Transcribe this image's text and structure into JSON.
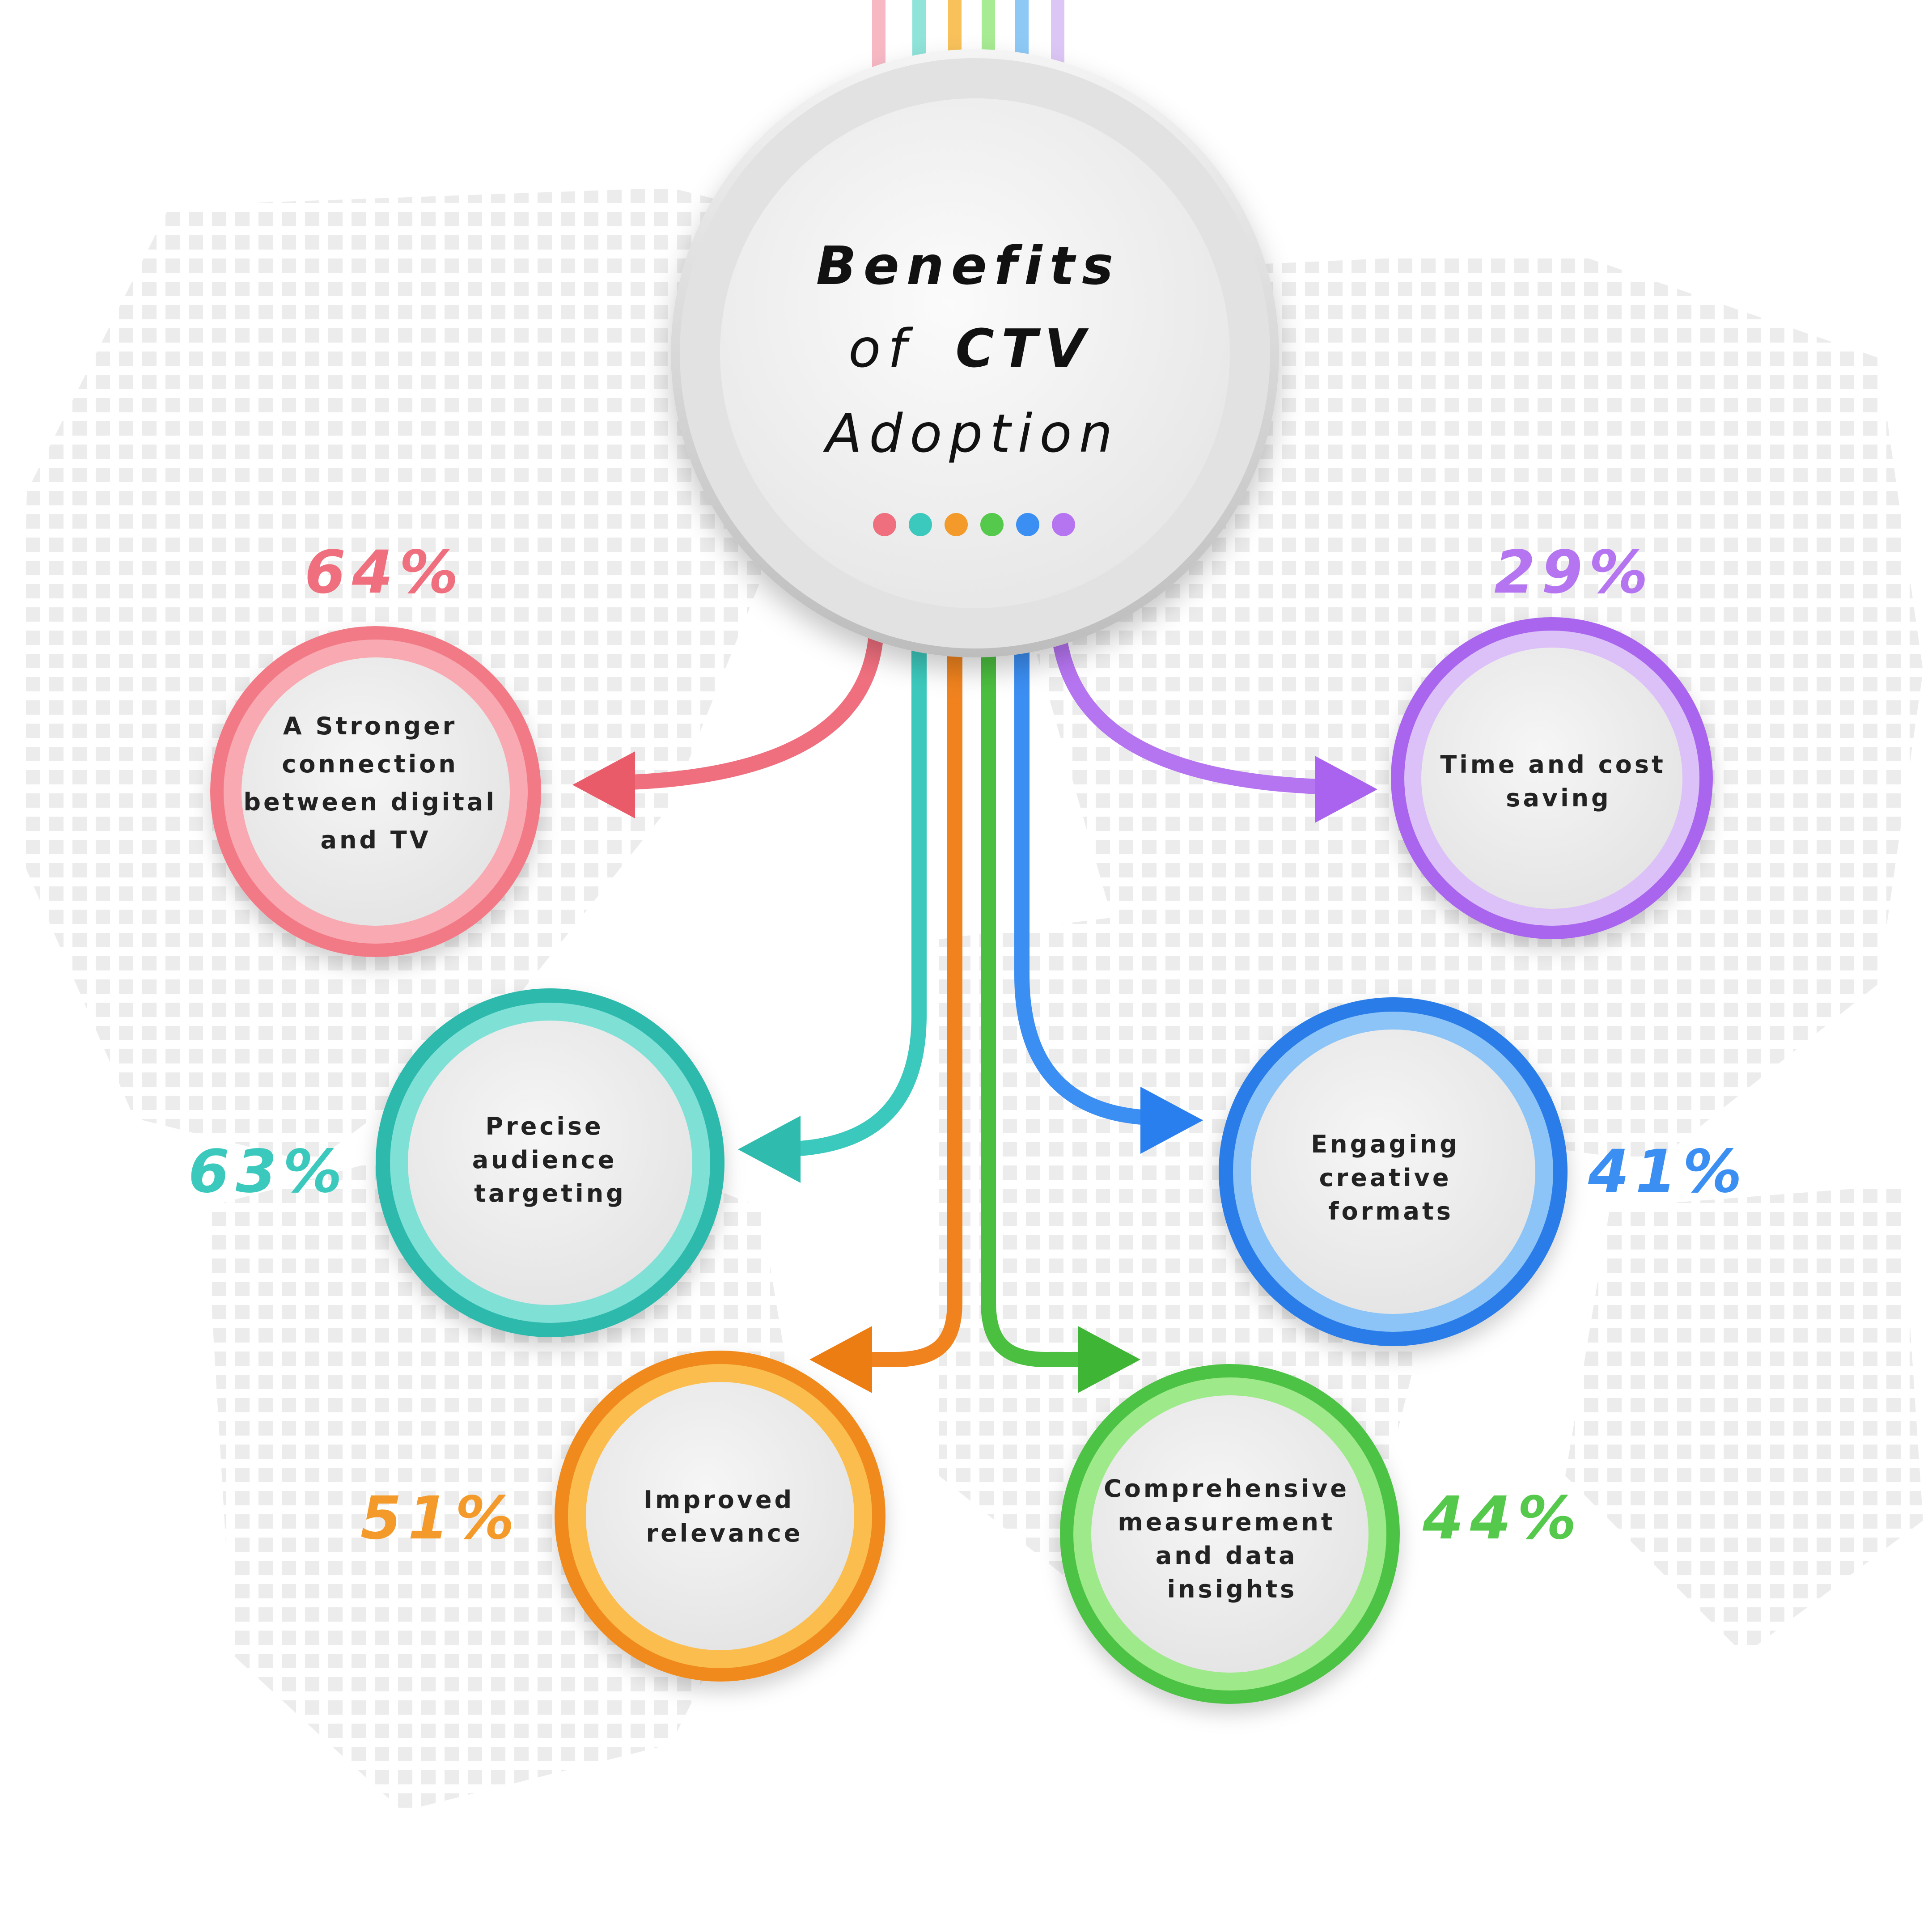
{
  "title": {
    "line1": "Benefits",
    "line2_prefix": "of",
    "line2_emph": "CTV",
    "line3": "Adoption"
  },
  "colors": {
    "pink": "#ef6f7e",
    "teal": "#3cc9bd",
    "orange": "#f39a2a",
    "green": "#55c94b",
    "blue": "#3b8ef2",
    "purple": "#b574f0"
  },
  "benefits": [
    {
      "id": "connection",
      "lines": [
        "A Stronger",
        "connection",
        "between digital",
        "and TV"
      ],
      "percent": "64%",
      "color": "pink"
    },
    {
      "id": "targeting",
      "lines": [
        "Precise",
        "audience",
        "targeting"
      ],
      "percent": "63%",
      "color": "teal"
    },
    {
      "id": "relevance",
      "lines": [
        "Improved",
        "relevance"
      ],
      "percent": "51%",
      "color": "orange"
    },
    {
      "id": "measurement",
      "lines": [
        "Comprehensive",
        "measurement",
        "and data",
        "insights"
      ],
      "percent": "44%",
      "color": "green"
    },
    {
      "id": "formats",
      "lines": [
        "Engaging",
        "creative",
        "formats"
      ],
      "percent": "41%",
      "color": "blue"
    },
    {
      "id": "saving",
      "lines": [
        "Time and cost",
        "saving"
      ],
      "percent": "29%",
      "color": "purple"
    }
  ]
}
